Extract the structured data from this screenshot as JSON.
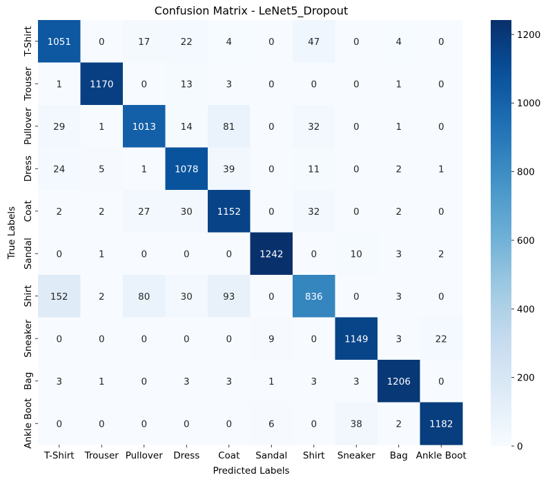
{
  "chart_data": {
    "type": "heatmap",
    "title": "Confusion Matrix - LeNet5_Dropout",
    "xlabel": "Predicted Labels",
    "ylabel": "True Labels",
    "x_categories": [
      "T-Shirt",
      "Trouser",
      "Pullover",
      "Dress",
      "Coat",
      "Sandal",
      "Shirt",
      "Sneaker",
      "Bag",
      "Ankle Boot"
    ],
    "y_categories": [
      "T-Shirt",
      "Trouser",
      "Pullover",
      "Dress",
      "Coat",
      "Sandal",
      "Shirt",
      "Sneaker",
      "Bag",
      "Ankle Boot"
    ],
    "values": [
      [
        1051,
        0,
        17,
        22,
        4,
        0,
        47,
        0,
        4,
        0
      ],
      [
        1,
        1170,
        0,
        13,
        3,
        0,
        0,
        0,
        1,
        0
      ],
      [
        29,
        1,
        1013,
        14,
        81,
        0,
        32,
        0,
        1,
        0
      ],
      [
        24,
        5,
        1,
        1078,
        39,
        0,
        11,
        0,
        2,
        1
      ],
      [
        2,
        2,
        27,
        30,
        1152,
        0,
        32,
        0,
        2,
        0
      ],
      [
        0,
        1,
        0,
        0,
        0,
        1242,
        0,
        10,
        3,
        2
      ],
      [
        152,
        2,
        80,
        30,
        93,
        0,
        836,
        0,
        3,
        0
      ],
      [
        0,
        0,
        0,
        0,
        0,
        9,
        0,
        1149,
        3,
        22
      ],
      [
        3,
        1,
        0,
        3,
        3,
        1,
        3,
        3,
        1206,
        0
      ],
      [
        0,
        0,
        0,
        0,
        0,
        6,
        0,
        38,
        2,
        1182
      ]
    ],
    "colorbar": {
      "min": 0,
      "max": 1242,
      "ticks": [
        0,
        200,
        400,
        600,
        800,
        1000,
        1200
      ],
      "colormap": "Blues"
    },
    "annotations": true,
    "grid": false
  }
}
